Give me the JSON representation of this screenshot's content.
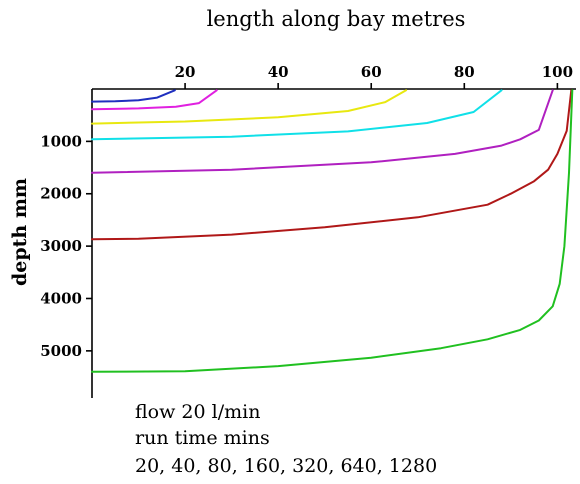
{
  "chart_data": {
    "type": "line",
    "title": "length along bay metres",
    "xlabel": "",
    "ylabel": "depth mm",
    "xlim": [
      0,
      104
    ],
    "ylim": [
      0,
      5900
    ],
    "y_inverted": true,
    "x_axis_position": "top",
    "grid": false,
    "legend": "none",
    "xticks": [
      20,
      40,
      60,
      80,
      100
    ],
    "yticks": [
      1000,
      2000,
      3000,
      4000,
      5000
    ],
    "annotation_lines": [
      "flow 20 l/min",
      "run time mins",
      "20, 40, 80, 160, 320, 640, 1280"
    ],
    "series": [
      {
        "color": "#1f2fbf",
        "x": [
          0,
          5,
          10,
          14,
          17.8
        ],
        "y": [
          240,
          235,
          215,
          165,
          25
        ]
      },
      {
        "color": "#e020e0",
        "x": [
          0,
          10,
          18,
          23,
          26.8
        ],
        "y": [
          385,
          370,
          340,
          270,
          25
        ]
      },
      {
        "color": "#e8e810",
        "x": [
          0,
          20,
          40,
          55,
          63,
          67.5
        ],
        "y": [
          660,
          620,
          540,
          420,
          250,
          25
        ]
      },
      {
        "color": "#10e0e8",
        "x": [
          0,
          30,
          55,
          72,
          82,
          88
        ],
        "y": [
          960,
          910,
          810,
          650,
          440,
          25
        ]
      },
      {
        "color": "#b020c0",
        "x": [
          0,
          30,
          60,
          78,
          88,
          92,
          96,
          99
        ],
        "y": [
          1600,
          1540,
          1400,
          1240,
          1080,
          960,
          780,
          25
        ]
      },
      {
        "color": "#b01818",
        "x": [
          0,
          10,
          30,
          50,
          70,
          85,
          90,
          95,
          98,
          100,
          102,
          103
        ],
        "y": [
          2870,
          2860,
          2780,
          2640,
          2450,
          2210,
          2000,
          1760,
          1540,
          1240,
          800,
          25
        ]
      },
      {
        "color": "#20c020",
        "x": [
          0,
          20,
          40,
          60,
          75,
          85,
          92,
          96,
          99,
          100.5,
          101.5,
          102.5,
          103.2
        ],
        "y": [
          5400,
          5390,
          5290,
          5130,
          4950,
          4780,
          4600,
          4420,
          4150,
          3720,
          3000,
          1600,
          25
        ]
      }
    ]
  }
}
